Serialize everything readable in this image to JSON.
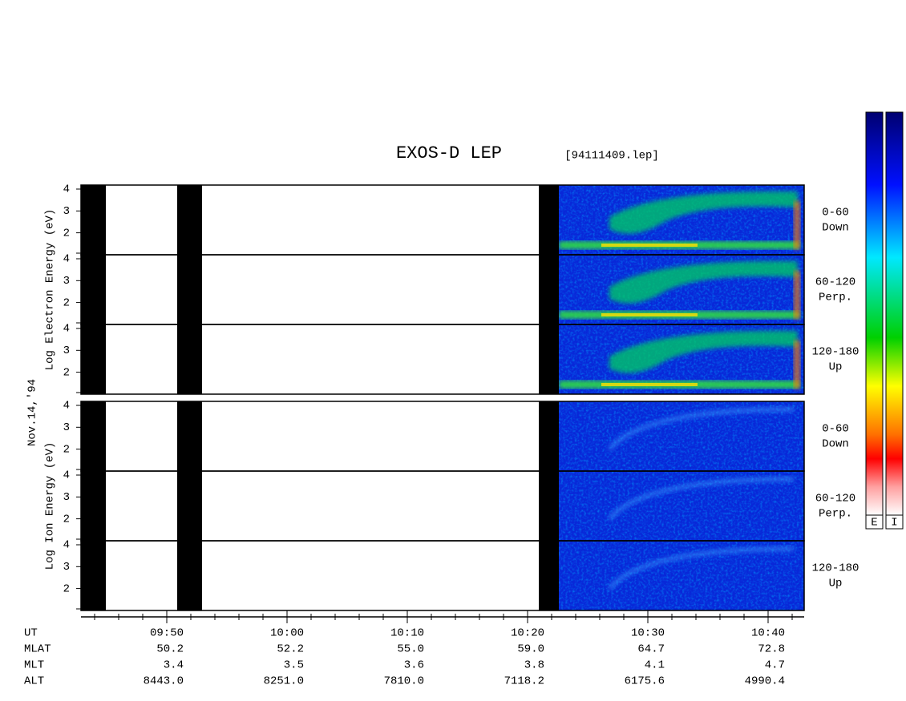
{
  "title": "EXOS-D LEP",
  "file": "[94111409.lep]",
  "date": "Nov.14,'94",
  "panels": [
    {
      "ylabel": "Log  Electron  Energy (eV)",
      "subpanels": [
        {
          "angle": "0-60",
          "dir": "Down"
        },
        {
          "angle": "60-120",
          "dir": "Perp."
        },
        {
          "angle": "120-180",
          "dir": "Up"
        }
      ]
    },
    {
      "ylabel": "Log  Ion  Energy (eV)",
      "subpanels": [
        {
          "angle": "0-60",
          "dir": "Down"
        },
        {
          "angle": "60-120",
          "dir": "Perp."
        },
        {
          "angle": "120-180",
          "dir": "Up"
        }
      ]
    }
  ],
  "yticks": [
    2,
    3,
    4
  ],
  "footer": {
    "rows": [
      {
        "name": "UT",
        "values": [
          "09:50",
          "10:00",
          "10:10",
          "10:20",
          "10:30",
          "10:40"
        ]
      },
      {
        "name": "MLAT",
        "values": [
          "50.2",
          "52.2",
          "55.0",
          "59.0",
          "64.7",
          "72.8"
        ]
      },
      {
        "name": "MLT",
        "values": [
          "3.4",
          "3.5",
          "3.6",
          "3.8",
          "4.1",
          "4.7"
        ]
      },
      {
        "name": "ALT",
        "values": [
          "8443.0",
          "8251.0",
          "7810.0",
          "7118.2",
          "6175.6",
          "4990.4"
        ]
      }
    ]
  },
  "colorbar": {
    "labels": [
      "E",
      "I"
    ]
  }
}
